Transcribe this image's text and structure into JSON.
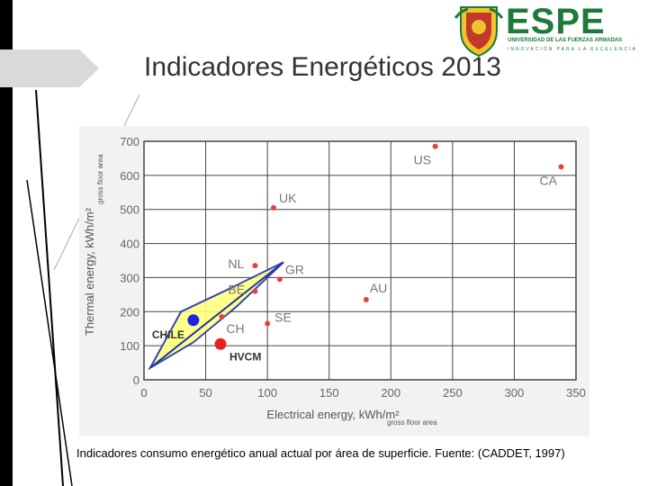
{
  "slide": {
    "title": "Indicadores Energéticos 2013",
    "caption": "Indicadores consumo energético anual actual por área de superficie. Fuente: (CADDET, 1997)"
  },
  "logo": {
    "brand": "ESPE",
    "subtitle": "UNIVERSIDAD DE LAS FUERZAS ARMADAS",
    "motto": "INNOVACIÓN PARA LA EXCELENCIA",
    "color": "#1d7a3a"
  },
  "chart_data": {
    "type": "scatter",
    "xlabel": "Electrical energy, kWh/m²",
    "xlabel_sub": "gross floor area",
    "ylabel": "Thermal energy, kWh/m²",
    "ylabel_sub": "gross floor area",
    "xlim": [
      0,
      350
    ],
    "ylim": [
      0,
      700
    ],
    "xticks": [
      0,
      50,
      100,
      150,
      200,
      250,
      300,
      350
    ],
    "yticks": [
      0,
      100,
      200,
      300,
      400,
      500,
      600,
      700
    ],
    "grid": true,
    "points": [
      {
        "label": "US",
        "x": 236,
        "y": 685,
        "color": "#e84040"
      },
      {
        "label": "CA",
        "x": 338,
        "y": 625,
        "color": "#e84040"
      },
      {
        "label": "UK",
        "x": 105,
        "y": 505,
        "color": "#e84040"
      },
      {
        "label": "NL",
        "x": 90,
        "y": 335,
        "color": "#e84040"
      },
      {
        "label": "GR",
        "x": 110,
        "y": 295,
        "color": "#e84040"
      },
      {
        "label": "BE",
        "x": 90,
        "y": 260,
        "color": "#e84040"
      },
      {
        "label": "AU",
        "x": 180,
        "y": 235,
        "color": "#e84040"
      },
      {
        "label": "CH",
        "x": 63,
        "y": 185,
        "color": "#e84040"
      },
      {
        "label": "SE",
        "x": 100,
        "y": 165,
        "color": "#e84040"
      },
      {
        "label": "CHILE",
        "x": 40,
        "y": 175,
        "color": "#2222dd",
        "big": true
      },
      {
        "label": "HVCM",
        "x": 62,
        "y": 105,
        "color": "#e82020",
        "big": true
      }
    ],
    "region": {
      "fill": "#ffff80",
      "stroke": "#2233aa",
      "outline": [
        [
          5,
          35
        ],
        [
          30,
          200
        ],
        [
          65,
          260
        ],
        [
          113,
          345
        ],
        [
          75,
          215
        ],
        [
          40,
          110
        ]
      ]
    }
  }
}
